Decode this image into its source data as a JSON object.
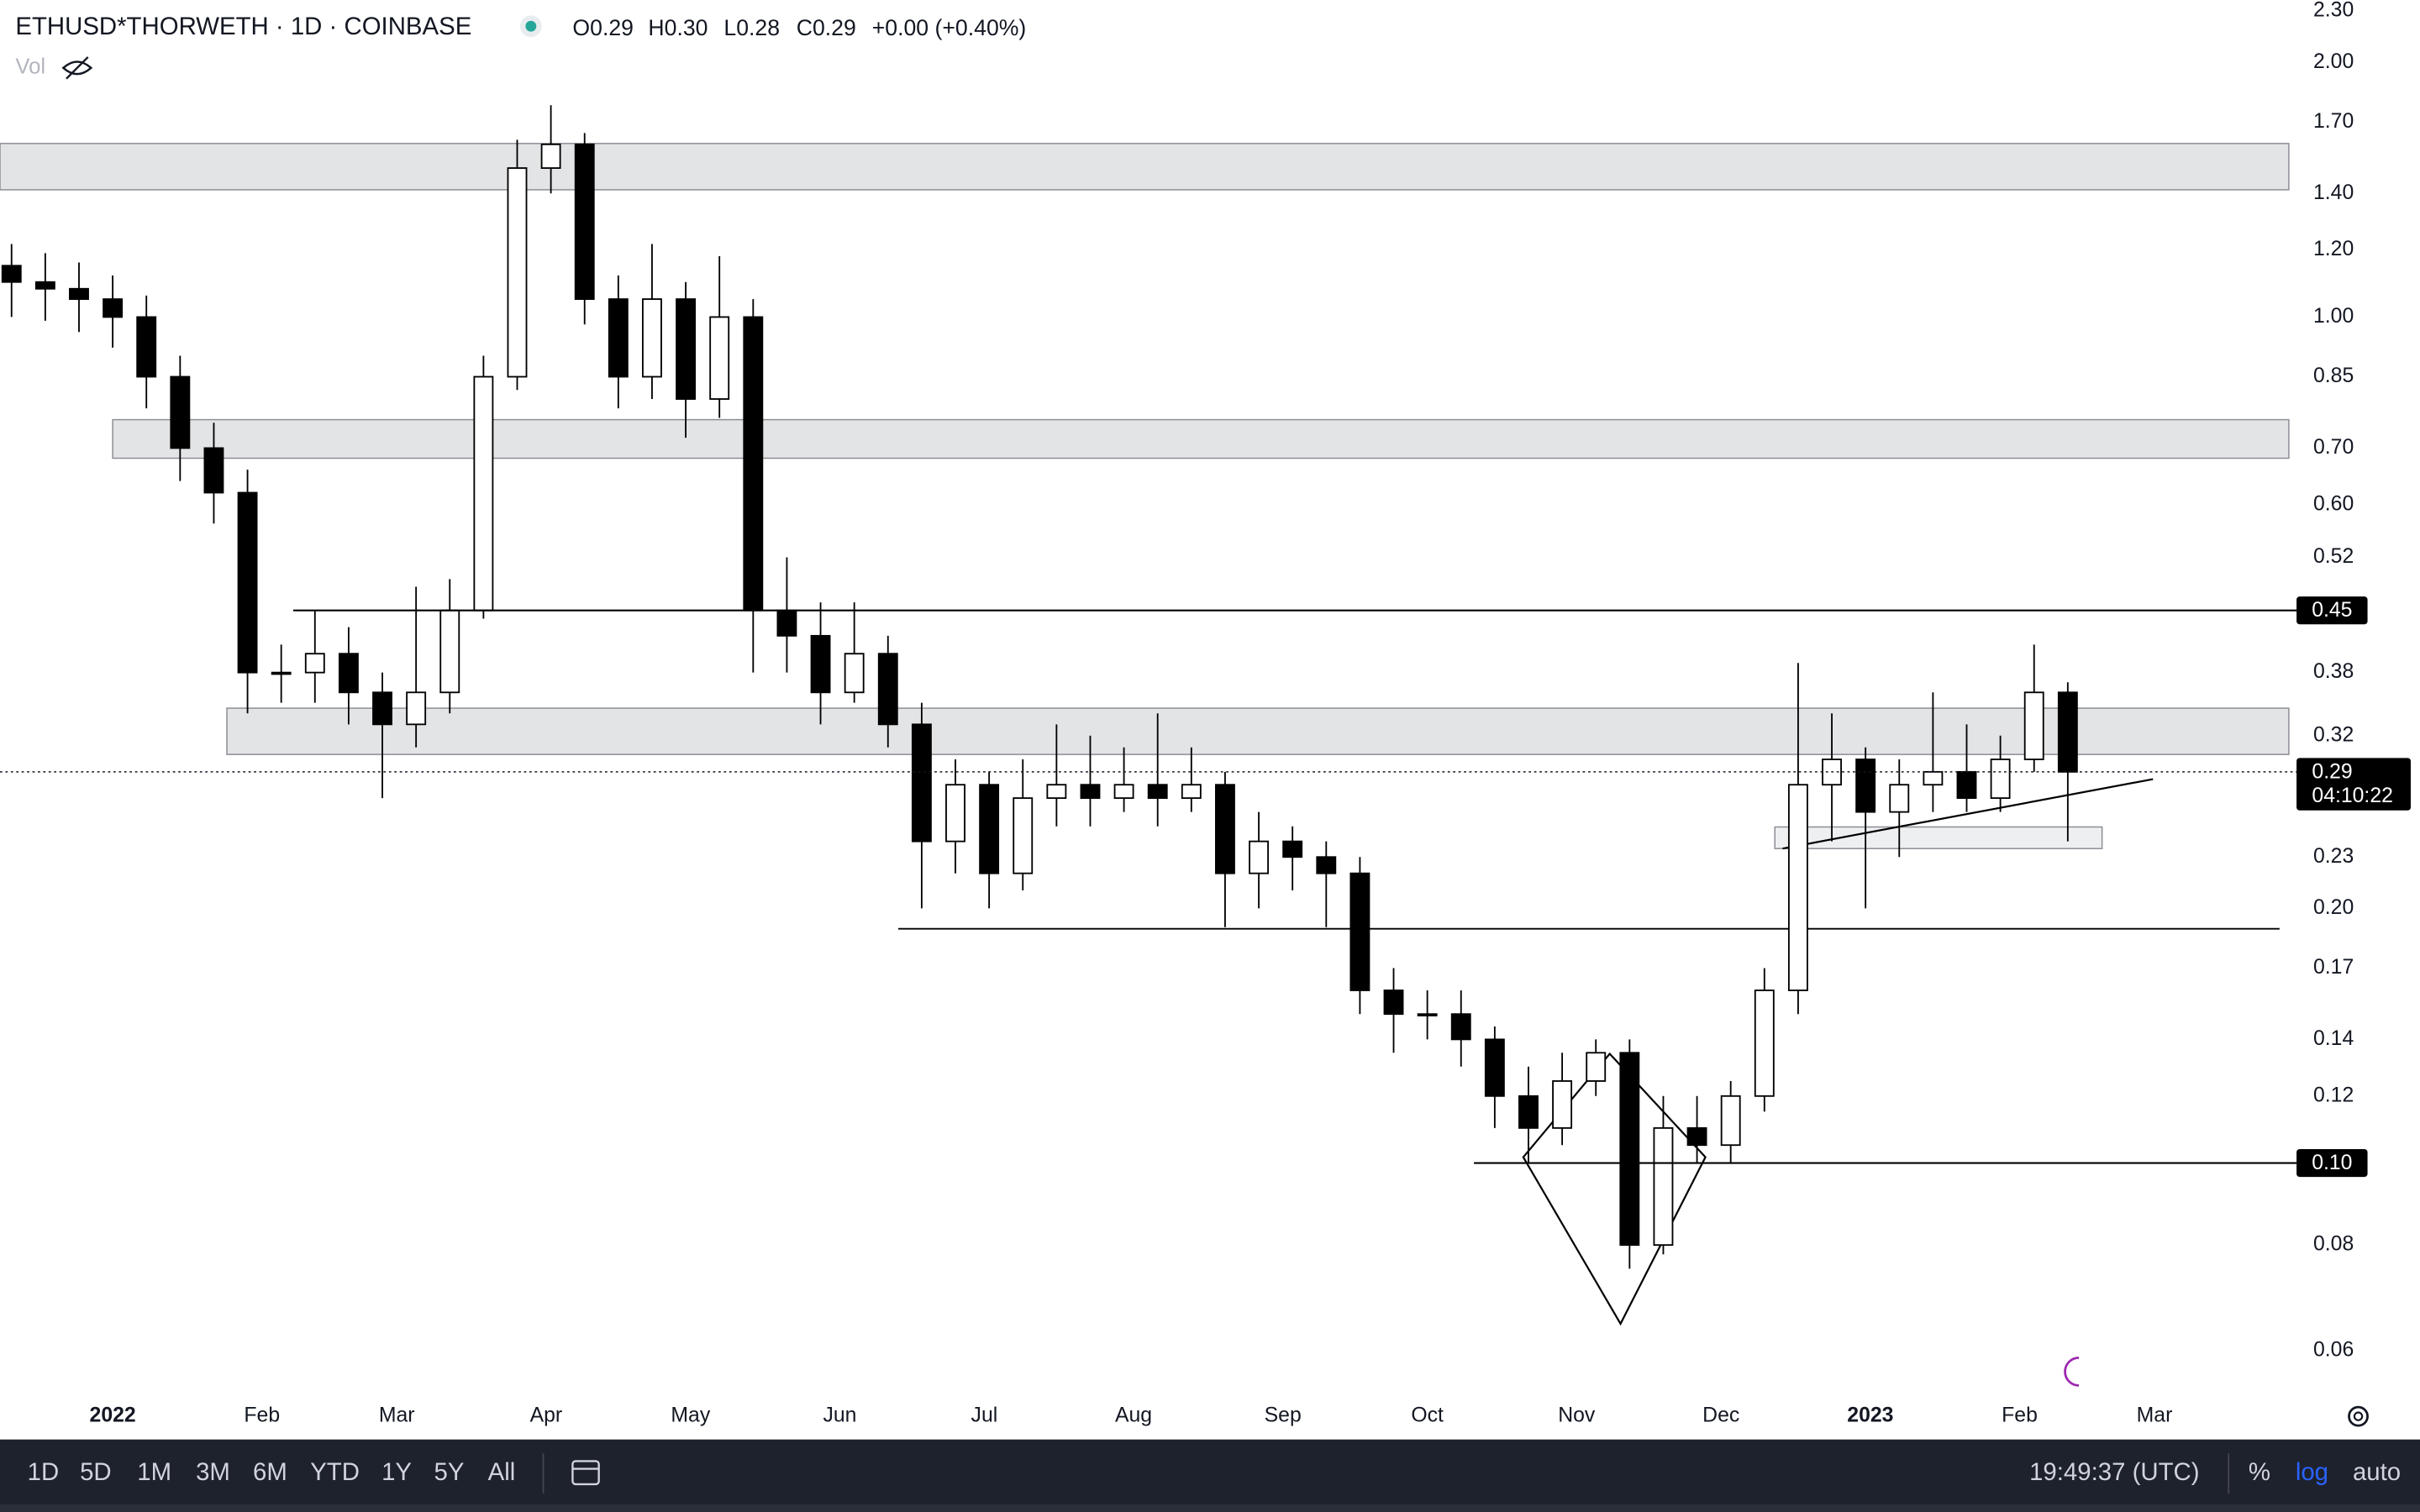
{
  "chart_data": {
    "type": "candlestick",
    "title": "ETHUSD*THORWETH · 1D · COINBASE",
    "ohlc_readout": [
      "O0.29",
      "H0.30",
      "L0.28",
      "C0.29",
      "+0.00 (+0.40%)"
    ],
    "volume_label": "Vol",
    "log_scale": true,
    "up_color": "#ffffff",
    "down_color": "#000000",
    "x": [
      -21,
      -14,
      -7,
      0,
      7,
      14,
      21,
      28,
      35,
      42,
      49,
      56,
      63,
      70,
      77,
      84,
      91,
      98,
      105,
      112,
      119,
      126,
      133,
      140,
      147,
      154,
      161,
      168,
      175,
      182,
      189,
      196,
      203,
      210,
      217,
      224,
      231,
      238,
      245,
      252,
      259,
      266,
      273,
      280,
      287,
      294,
      301,
      308,
      315,
      322,
      329,
      336,
      343,
      350,
      357,
      364,
      371,
      378,
      385,
      392,
      399,
      406
    ],
    "open": [
      1.15,
      1.1,
      1.08,
      1.05,
      1.0,
      0.85,
      0.7,
      0.62,
      0.38,
      0.38,
      0.4,
      0.36,
      0.33,
      0.36,
      0.45,
      0.85,
      1.5,
      1.6,
      1.05,
      0.85,
      1.05,
      0.8,
      1.0,
      0.45,
      0.42,
      0.36,
      0.4,
      0.33,
      0.24,
      0.28,
      0.22,
      0.27,
      0.28,
      0.27,
      0.28,
      0.27,
      0.28,
      0.22,
      0.24,
      0.23,
      0.22,
      0.16,
      0.15,
      0.15,
      0.14,
      0.12,
      0.11,
      0.125,
      0.135,
      0.08,
      0.11,
      0.105,
      0.12,
      0.16,
      0.28,
      0.3,
      0.26,
      0.28,
      0.29,
      0.27,
      0.3,
      0.36
    ],
    "high": [
      1.22,
      1.19,
      1.16,
      1.12,
      1.06,
      0.9,
      0.75,
      0.66,
      0.41,
      0.45,
      0.43,
      0.38,
      0.48,
      0.49,
      0.9,
      1.62,
      1.78,
      1.65,
      1.12,
      1.22,
      1.1,
      1.18,
      1.05,
      0.52,
      0.46,
      0.46,
      0.42,
      0.35,
      0.3,
      0.29,
      0.3,
      0.33,
      0.32,
      0.31,
      0.34,
      0.31,
      0.29,
      0.26,
      0.25,
      0.24,
      0.23,
      0.17,
      0.16,
      0.16,
      0.145,
      0.13,
      0.135,
      0.14,
      0.14,
      0.12,
      0.12,
      0.125,
      0.17,
      0.39,
      0.34,
      0.31,
      0.3,
      0.36,
      0.33,
      0.32,
      0.41,
      0.37
    ],
    "low": [
      1.0,
      0.99,
      0.96,
      0.92,
      0.78,
      0.64,
      0.57,
      0.34,
      0.35,
      0.35,
      0.33,
      0.27,
      0.31,
      0.34,
      0.44,
      0.82,
      1.4,
      0.98,
      0.78,
      0.8,
      0.72,
      0.76,
      0.38,
      0.38,
      0.33,
      0.35,
      0.31,
      0.2,
      0.22,
      0.2,
      0.21,
      0.25,
      0.25,
      0.26,
      0.25,
      0.26,
      0.19,
      0.2,
      0.21,
      0.19,
      0.15,
      0.135,
      0.14,
      0.13,
      0.11,
      0.1,
      0.105,
      0.12,
      0.075,
      0.078,
      0.1,
      0.1,
      0.115,
      0.15,
      0.24,
      0.2,
      0.23,
      0.26,
      0.26,
      0.26,
      0.29,
      0.24
    ],
    "close": [
      1.1,
      1.08,
      1.05,
      1.0,
      0.85,
      0.7,
      0.62,
      0.38,
      0.38,
      0.4,
      0.36,
      0.33,
      0.36,
      0.45,
      0.85,
      1.5,
      1.6,
      1.05,
      0.85,
      1.05,
      0.8,
      1.0,
      0.45,
      0.42,
      0.36,
      0.4,
      0.33,
      0.24,
      0.28,
      0.22,
      0.27,
      0.28,
      0.27,
      0.28,
      0.27,
      0.28,
      0.22,
      0.24,
      0.23,
      0.22,
      0.16,
      0.15,
      0.15,
      0.14,
      0.12,
      0.11,
      0.125,
      0.135,
      0.08,
      0.11,
      0.105,
      0.12,
      0.16,
      0.28,
      0.3,
      0.26,
      0.28,
      0.29,
      0.27,
      0.3,
      0.36,
      0.29
    ],
    "xlim": [
      -23.4,
      453.5
    ],
    "xticks": [
      {
        "value": 0,
        "label": "2022"
      },
      {
        "value": 31,
        "label": "Feb"
      },
      {
        "value": 59,
        "label": "Mar"
      },
      {
        "value": 90,
        "label": "Apr"
      },
      {
        "value": 120,
        "label": "May"
      },
      {
        "value": 151,
        "label": "Jun"
      },
      {
        "value": 181,
        "label": "Jul"
      },
      {
        "value": 212,
        "label": "Aug"
      },
      {
        "value": 243,
        "label": "Sep"
      },
      {
        "value": 273,
        "label": "Oct"
      },
      {
        "value": 304,
        "label": "Nov"
      },
      {
        "value": 334,
        "label": "Dec"
      },
      {
        "value": 365,
        "label": "2023"
      },
      {
        "value": 396,
        "label": "Feb"
      },
      {
        "value": 424,
        "label": "Mar"
      }
    ],
    "ylim": [
      0.053,
      2.37
    ],
    "yticks": [
      {
        "value": 2.3,
        "label": "2.30"
      },
      {
        "value": 2,
        "label": "2.00"
      },
      {
        "value": 1.7,
        "label": "1.70"
      },
      {
        "value": 1.4,
        "label": "1.40"
      },
      {
        "value": 1.2,
        "label": "1.20"
      },
      {
        "value": 1,
        "label": "1.00"
      },
      0.85,
      {
        "value": 0.7,
        "label": "0.70"
      },
      {
        "value": 0.6,
        "label": "0.60"
      },
      0.52,
      0.38,
      0.32,
      0.23,
      {
        "value": 0.2,
        "label": "0.20"
      },
      0.17,
      0.14,
      0.12,
      0.08,
      0.06
    ],
    "price_lines": [
      0.45,
      {
        "value": 0.1,
        "label": "0.10"
      }
    ],
    "last_price": 0.29,
    "countdown": "04:10:22"
  },
  "toolbar": {
    "ranges": [
      "1D",
      "5D",
      "1M",
      "3M",
      "6M",
      "YTD",
      "1Y",
      "5Y",
      "All"
    ],
    "clock": "19:49:37 (UTC)",
    "percent": "%",
    "log": "log",
    "auto": "auto"
  }
}
